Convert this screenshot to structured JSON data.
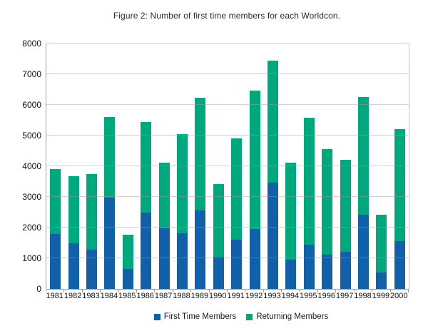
{
  "title": "Figure 2: Number of first time members for each Worldcon.",
  "legend": [
    {
      "label": "First Time Members",
      "color": "#1160AA"
    },
    {
      "label": "Returning Members",
      "color": "#00A87E"
    }
  ],
  "chart_data": {
    "type": "bar",
    "stacked": true,
    "title": "Figure 2: Number of first time members for each Worldcon.",
    "xlabel": "",
    "ylabel": "",
    "ylim": [
      0,
      8000
    ],
    "y_ticks": [
      0,
      1000,
      2000,
      3000,
      4000,
      5000,
      6000,
      7000,
      8000
    ],
    "grid": "horizontal",
    "legend_position": "bottom",
    "categories": [
      "1981",
      "1982",
      "1983",
      "1984",
      "1985",
      "1986",
      "1987",
      "1988",
      "1989",
      "1990",
      "1991",
      "1992",
      "1993",
      "1994",
      "1995",
      "1996",
      "1997",
      "1998",
      "1999",
      "2000"
    ],
    "series": [
      {
        "name": "First Time Members",
        "color": "#1160AA",
        "values": [
          1800,
          1490,
          1280,
          2980,
          650,
          2500,
          1970,
          1820,
          2550,
          1040,
          1610,
          1960,
          3470,
          950,
          1450,
          1110,
          1210,
          2410,
          540,
          1570
        ]
      },
      {
        "name": "Returning Members",
        "color": "#00A87E",
        "values": [
          2110,
          2180,
          2460,
          2620,
          1120,
          2940,
          2150,
          3230,
          3680,
          2390,
          3300,
          4500,
          3980,
          3170,
          4130,
          3460,
          3010,
          3850,
          1880,
          3640
        ]
      }
    ],
    "totals": [
      3910,
      3670,
      3740,
      5600,
      1770,
      5440,
      4120,
      5050,
      6230,
      3430,
      4910,
      6460,
      7450,
      4120,
      5580,
      4570,
      4220,
      6260,
      2420,
      5210
    ]
  }
}
